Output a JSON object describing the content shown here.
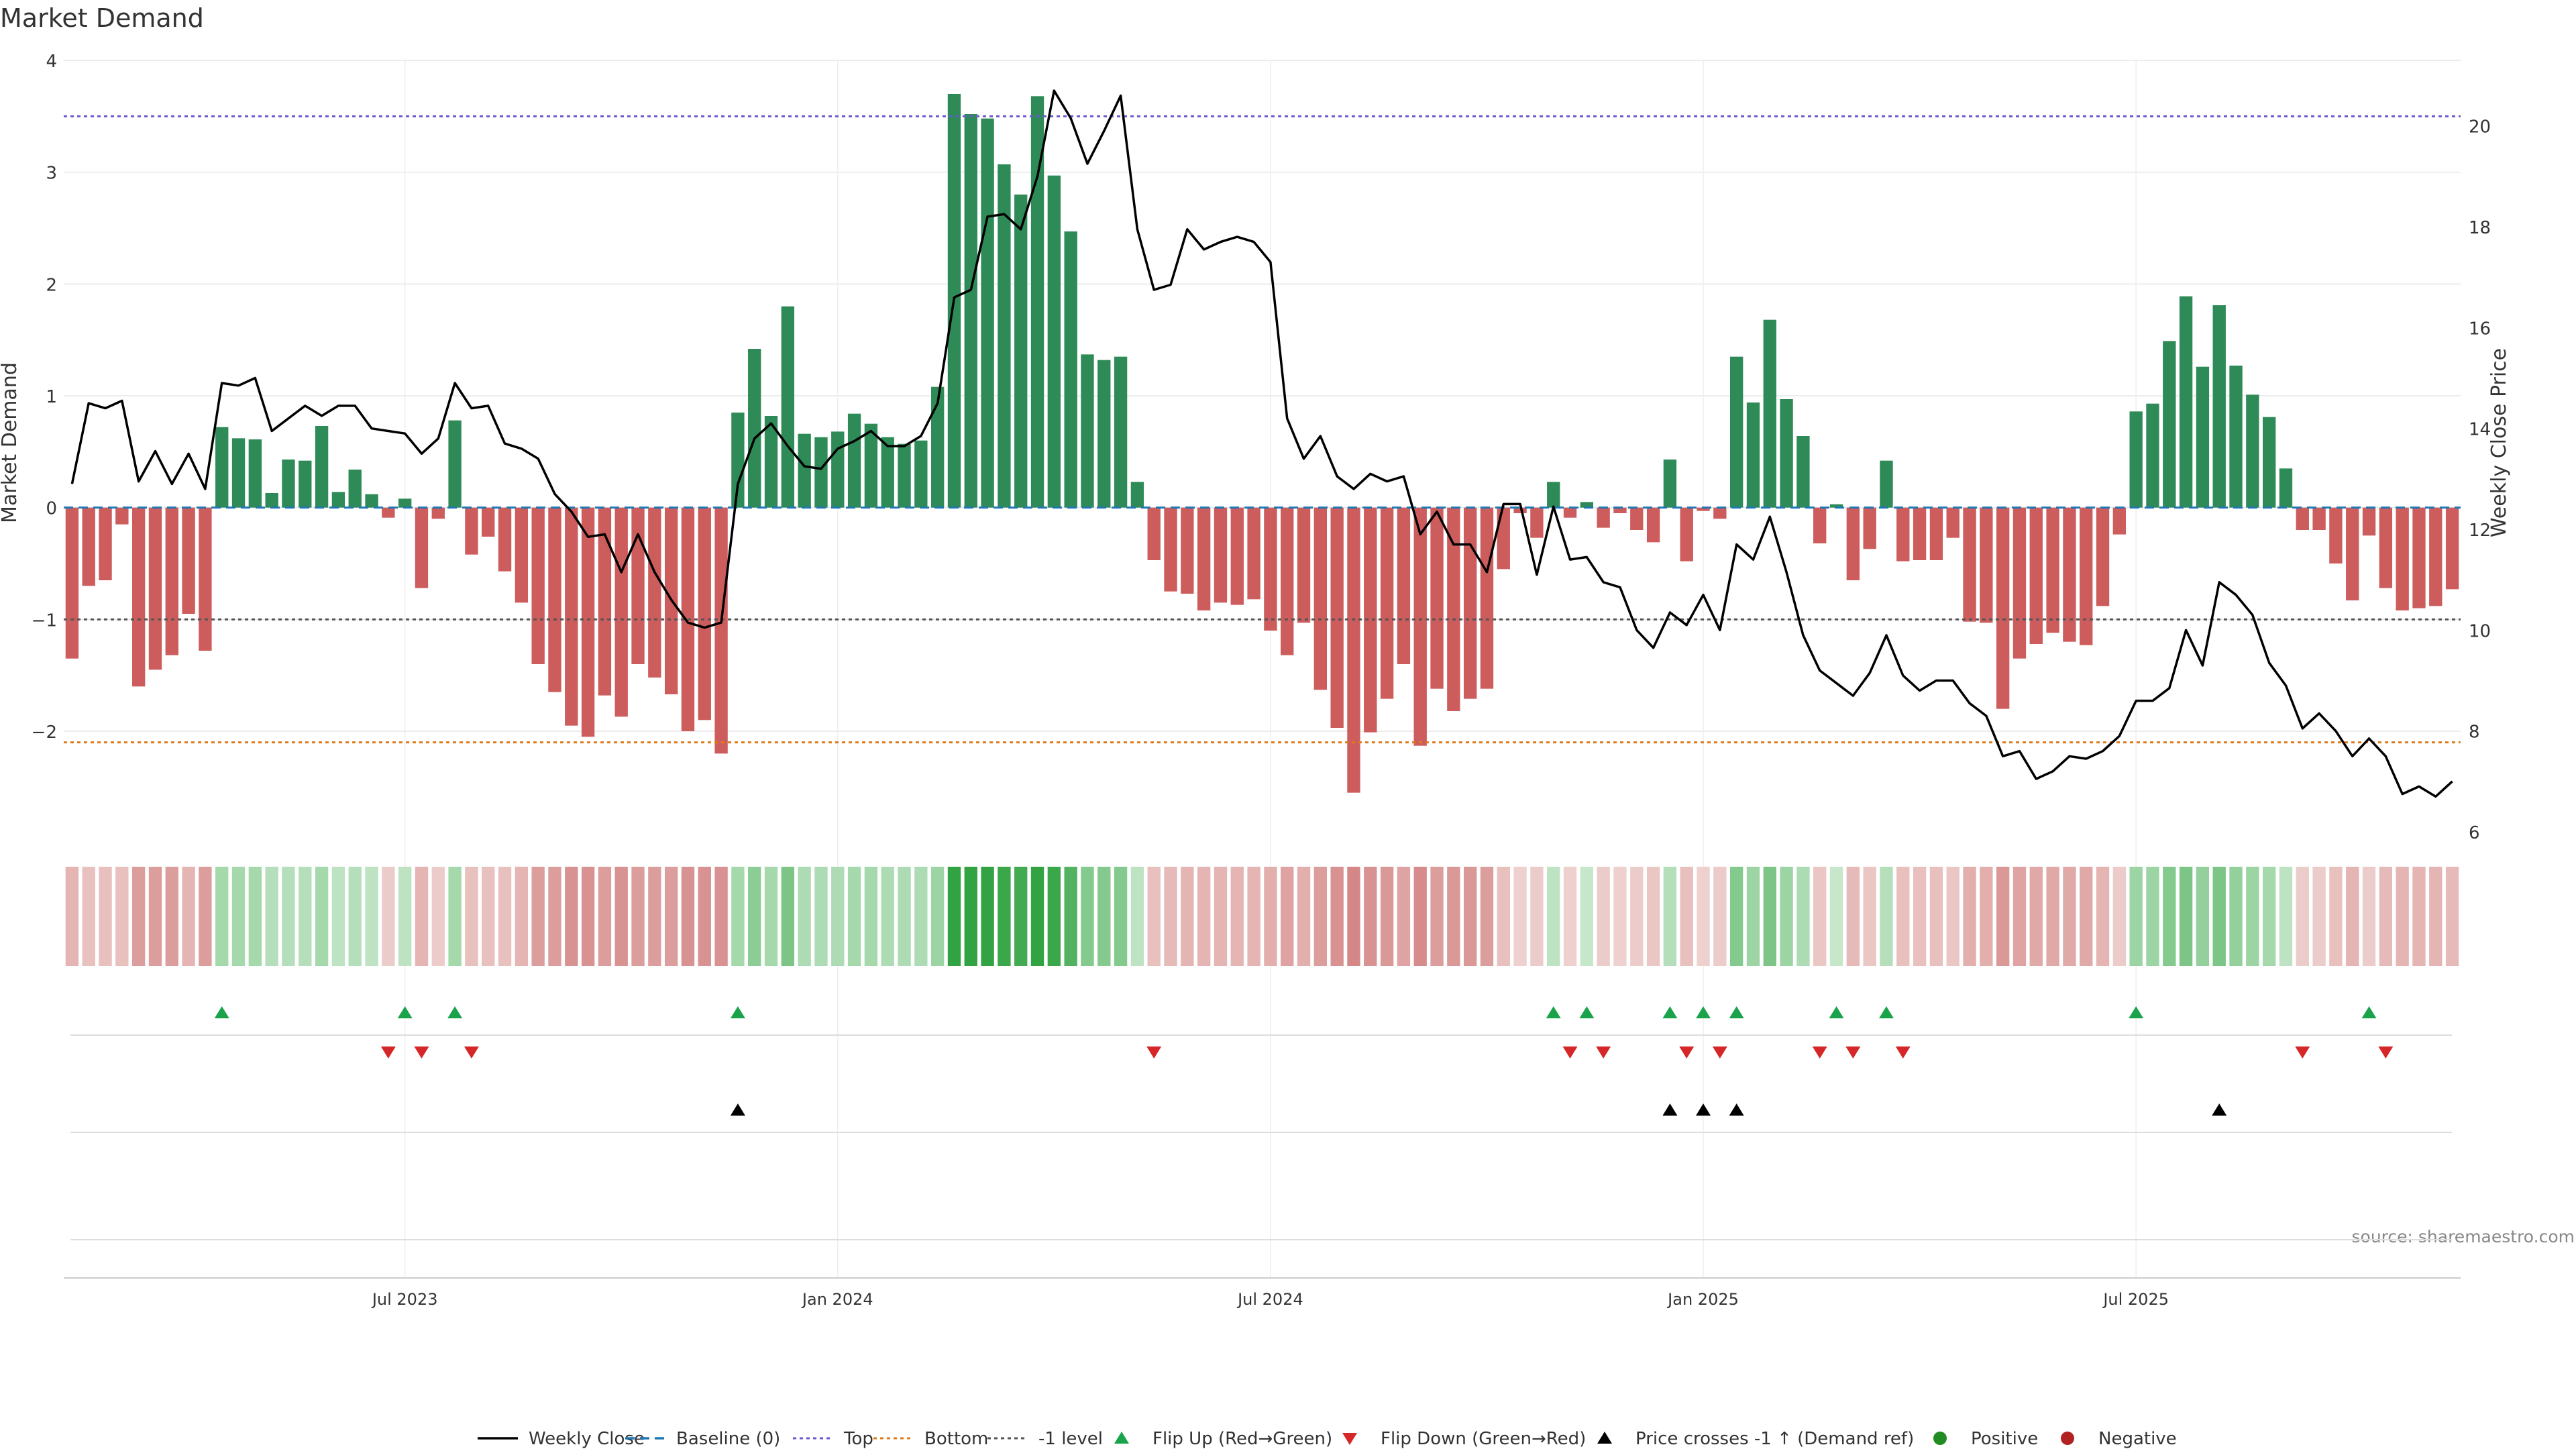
{
  "chart_data": {
    "type": "bar",
    "title": "Market Demand",
    "ylabel": "Market Demand",
    "y2label": "Weekly Close Price",
    "ylim": [
      -2.9,
      4.0
    ],
    "y2lim": [
      6,
      21.3
    ],
    "yticks": [
      -2,
      -1,
      0,
      1,
      2,
      3,
      4
    ],
    "yticklabels": [
      "−2",
      "−1",
      "0",
      "1",
      "2",
      "3",
      "4"
    ],
    "y2ticks": [
      6,
      8,
      10,
      12,
      14,
      16,
      18,
      20
    ],
    "y2ticklabels": [
      "6",
      "8",
      "10",
      "12",
      "14",
      "16",
      "18",
      "20"
    ],
    "xticks": [
      20,
      46,
      72,
      98,
      124
    ],
    "xticklabels": [
      "Jul 2023",
      "Jan 2024",
      "Jul 2024",
      "Jan 2025",
      "Jul 2025"
    ],
    "reference_lines": {
      "top": 3.5,
      "bottom": -2.1,
      "minus_one": -1,
      "baseline": 0
    },
    "demand": [
      -1.35,
      -0.7,
      -0.65,
      -0.15,
      -1.6,
      -1.45,
      -1.32,
      -0.95,
      -1.28,
      0.72,
      0.62,
      0.61,
      0.13,
      0.43,
      0.42,
      0.73,
      0.14,
      0.34,
      0.12,
      -0.09,
      0.08,
      -0.72,
      -0.1,
      0.78,
      -0.42,
      -0.26,
      -0.57,
      -0.85,
      -1.4,
      -1.65,
      -1.95,
      -2.05,
      -1.68,
      -1.87,
      -1.4,
      -1.52,
      -1.67,
      -2.0,
      -1.9,
      -2.2,
      0.85,
      1.42,
      0.82,
      1.8,
      0.66,
      0.63,
      0.68,
      0.84,
      0.75,
      0.63,
      0.57,
      0.6,
      1.08,
      3.7,
      3.52,
      3.48,
      3.07,
      2.8,
      3.68,
      2.97,
      2.47,
      1.37,
      1.32,
      1.35,
      0.23,
      -0.47,
      -0.75,
      -0.77,
      -0.92,
      -0.85,
      -0.87,
      -0.82,
      -1.1,
      -1.32,
      -1.03,
      -1.63,
      -1.97,
      -2.55,
      -2.01,
      -1.71,
      -1.4,
      -2.13,
      -1.62,
      -1.82,
      -1.71,
      -1.62,
      -0.55,
      -0.05,
      -0.27,
      0.23,
      -0.09,
      0.05,
      -0.18,
      -0.05,
      -0.2,
      -0.31,
      0.43,
      -0.48,
      -0.03,
      -0.1,
      1.35,
      0.94,
      1.68,
      0.97,
      0.64,
      -0.32,
      0.03,
      -0.65,
      -0.37,
      0.42,
      -0.48,
      -0.47,
      -0.47,
      -0.27,
      -1.02,
      -1.03,
      -1.8,
      -1.35,
      -1.22,
      -1.12,
      -1.2,
      -1.23,
      -0.88,
      -0.24,
      0.86,
      0.93,
      1.49,
      1.89,
      1.26,
      1.81,
      1.27,
      1.01,
      0.81,
      0.35,
      -0.2,
      -0.2,
      -0.5,
      -0.83,
      -0.25,
      -0.72,
      -0.92,
      -0.9,
      -0.88,
      -0.73
    ],
    "close": [
      12.9,
      14.5,
      14.4,
      14.55,
      12.95,
      13.55,
      12.9,
      13.5,
      12.8,
      14.9,
      14.85,
      15.0,
      13.95,
      14.2,
      14.45,
      14.25,
      14.45,
      14.45,
      14.0,
      13.95,
      13.9,
      13.5,
      13.8,
      14.9,
      14.4,
      14.45,
      13.7,
      13.6,
      13.4,
      12.7,
      12.35,
      11.85,
      11.9,
      11.15,
      11.9,
      11.15,
      10.6,
      10.15,
      10.05,
      10.15,
      12.9,
      13.8,
      14.1,
      13.65,
      13.25,
      13.2,
      13.6,
      13.75,
      13.95,
      13.65,
      13.65,
      13.85,
      14.5,
      16.6,
      16.75,
      18.2,
      18.25,
      17.95,
      19.0,
      20.7,
      20.15,
      19.25,
      19.9,
      20.6,
      17.95,
      16.75,
      16.85,
      17.95,
      17.55,
      17.7,
      17.8,
      17.7,
      17.3,
      14.2,
      13.4,
      13.85,
      13.05,
      12.8,
      13.1,
      12.95,
      13.05,
      11.9,
      12.35,
      11.7,
      11.7,
      11.15,
      12.5,
      12.5,
      11.1,
      12.45,
      11.4,
      11.45,
      10.95,
      10.85,
      10.0,
      9.65,
      10.35,
      10.1,
      10.7,
      10.0,
      11.7,
      11.4,
      12.25,
      11.15,
      9.9,
      9.2,
      8.95,
      8.7,
      9.15,
      9.9,
      9.1,
      8.8,
      9.0,
      9.0,
      8.55,
      8.3,
      7.5,
      7.6,
      7.05,
      7.2,
      7.5,
      7.45,
      7.6,
      7.9,
      8.6,
      8.6,
      8.85,
      10.0,
      9.3,
      10.95,
      10.7,
      10.3,
      9.35,
      8.9,
      8.05,
      8.35,
      8.0,
      7.5,
      7.85,
      7.5,
      6.75,
      6.9,
      6.7,
      7.0
    ],
    "heat_strip": [
      -0.3,
      -0.2,
      -0.2,
      -0.2,
      -0.5,
      -0.5,
      -0.5,
      -0.3,
      -0.5,
      0.3,
      0.3,
      0.3,
      0.2,
      0.2,
      0.2,
      0.3,
      0.15,
      0.2,
      0.15,
      -0.1,
      0.15,
      -0.3,
      -0.1,
      0.3,
      -0.2,
      -0.2,
      -0.2,
      -0.3,
      -0.5,
      -0.5,
      -0.6,
      -0.6,
      -0.5,
      -0.6,
      -0.5,
      -0.5,
      -0.5,
      -0.6,
      -0.6,
      -0.6,
      0.3,
      0.45,
      0.3,
      0.55,
      0.25,
      0.25,
      0.25,
      0.3,
      0.3,
      0.25,
      0.25,
      0.25,
      0.35,
      1.0,
      1.0,
      1.0,
      0.95,
      0.9,
      1.0,
      0.95,
      0.8,
      0.5,
      0.5,
      0.5,
      0.15,
      -0.2,
      -0.25,
      -0.3,
      -0.3,
      -0.3,
      -0.3,
      -0.3,
      -0.35,
      -0.45,
      -0.35,
      -0.5,
      -0.6,
      -0.7,
      -0.6,
      -0.55,
      -0.45,
      -0.65,
      -0.5,
      -0.55,
      -0.55,
      -0.5,
      -0.2,
      -0.05,
      -0.1,
      0.15,
      -0.05,
      0.1,
      -0.1,
      -0.05,
      -0.1,
      -0.15,
      0.2,
      -0.2,
      -0.05,
      -0.1,
      0.5,
      0.35,
      0.55,
      0.35,
      0.25,
      -0.15,
      0.1,
      -0.25,
      -0.15,
      0.2,
      -0.2,
      -0.2,
      -0.2,
      -0.15,
      -0.35,
      -0.35,
      -0.55,
      -0.45,
      -0.4,
      -0.4,
      -0.4,
      -0.4,
      -0.3,
      -0.1,
      0.35,
      0.35,
      0.5,
      0.55,
      0.4,
      0.55,
      0.4,
      0.35,
      0.3,
      0.15,
      -0.1,
      -0.1,
      -0.2,
      -0.3,
      -0.1,
      -0.25,
      -0.3,
      -0.3,
      -0.3,
      -0.25
    ],
    "flip_up": [
      9,
      20,
      23,
      40,
      89,
      91,
      96,
      98,
      100,
      106,
      109,
      124,
      138
    ],
    "flip_down": [
      19,
      21,
      24,
      65,
      90,
      92,
      97,
      99,
      105,
      107,
      110,
      134,
      139
    ],
    "price_crosses": [
      40,
      96,
      98,
      100,
      129
    ],
    "colors": {
      "positive": "#2e8b57",
      "negative": "#cd5c5c",
      "price": "#000000",
      "top": "#6a5acd",
      "bottom": "#e07b1a",
      "minus_one": "#555555",
      "baseline": "#1f77b4",
      "flip_up": "#1aa34a",
      "flip_down": "#d62728",
      "cross": "#000000",
      "positive_dot": "#228b22",
      "negative_dot": "#b22222",
      "grid": "#e6e6e6",
      "axis_text": "#333333"
    },
    "legend": [
      "Weekly Close",
      "Baseline (0)",
      "Top",
      "Bottom",
      "-1 level",
      "Flip Up (Red→Green)",
      "Flip Down (Green→Red)",
      "Price crosses -1 ↑ (Demand ref)",
      "Positive",
      "Negative"
    ],
    "legend_placement": "bottom-center",
    "source": "source: sharemaestro.com"
  }
}
